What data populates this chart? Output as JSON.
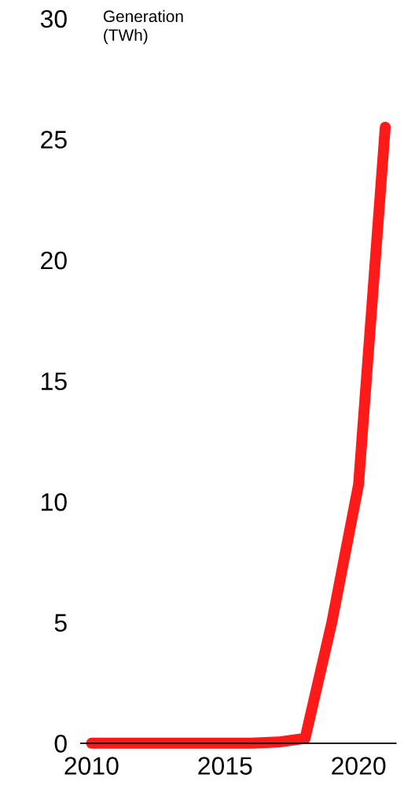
{
  "chart_data": {
    "type": "line",
    "ylabel": "Generation\n(TWh)",
    "x": [
      2010,
      2011,
      2012,
      2013,
      2014,
      2015,
      2016,
      2017,
      2018,
      2019,
      2020,
      2021
    ],
    "series": [
      {
        "color": "#ff1a1a",
        "values": [
          0,
          0,
          0,
          0,
          0,
          0,
          0,
          0.05,
          0.2,
          5.0,
          10.7,
          25.5
        ]
      }
    ],
    "xlim": [
      2009.6,
      2021.4
    ],
    "ylim": [
      0,
      30
    ],
    "xticks": [
      2010,
      2015,
      2020
    ],
    "yticks": [
      0,
      5,
      10,
      15,
      20,
      25,
      30
    ],
    "grid": false,
    "line_style": "solid"
  }
}
